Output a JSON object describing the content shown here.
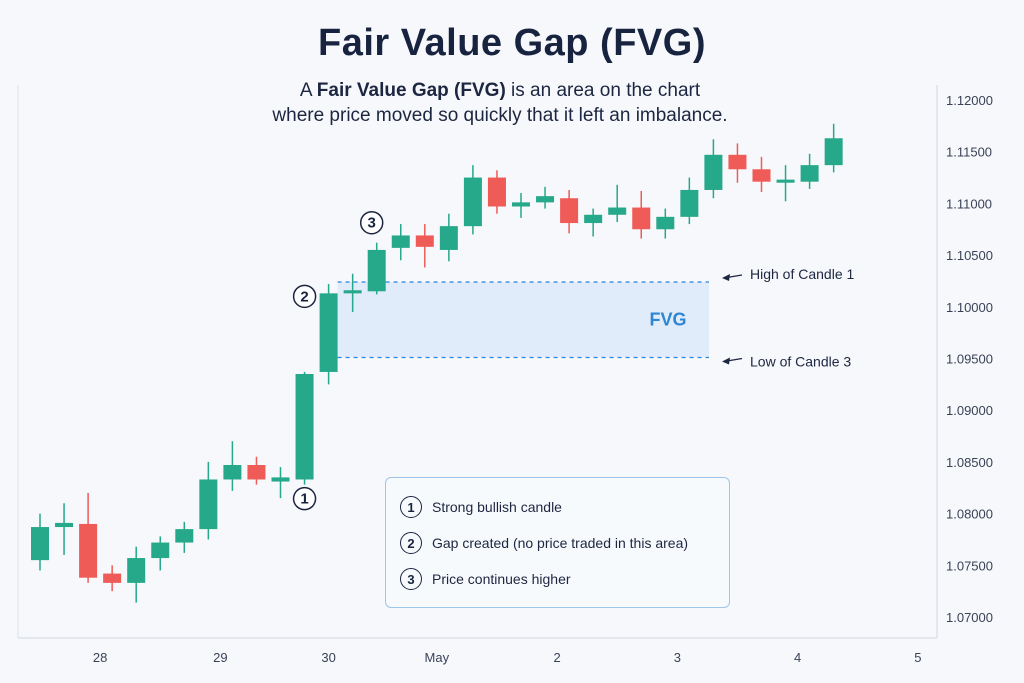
{
  "title": "Fair Value Gap (FVG)",
  "subtitle": {
    "pre": "A ",
    "bold": "Fair Value Gap (FVG)",
    "line1_post": " is an area on the chart",
    "line2": "where price moved so quickly that it left an imbalance."
  },
  "colors": {
    "bull": "#26a88a",
    "bear": "#ef5b57",
    "fvg_fill": "#dceaf8",
    "fvg_line": "#2d86d4",
    "text": "#1d2640"
  },
  "chart_data": {
    "type": "candlestick",
    "title": "Fair Value Gap (FVG)",
    "ylim": [
      1.0675,
      1.1225
    ],
    "y_ticks": [
      "1.12000",
      "1.11500",
      "1.11000",
      "1.10500",
      "1.10000",
      "1.09500",
      "1.09000",
      "1.08500",
      "1.08000",
      "1.07500",
      "1.07000"
    ],
    "x_ticks": [
      {
        "label": "28",
        "index": 2.5
      },
      {
        "label": "29",
        "index": 7.5
      },
      {
        "label": "30",
        "index": 12.0
      },
      {
        "label": "May",
        "index": 16.5
      },
      {
        "label": "2",
        "index": 21.5
      },
      {
        "label": "3",
        "index": 26.5
      },
      {
        "label": "4",
        "index": 31.5
      },
      {
        "label": "5",
        "index": 36.5
      }
    ],
    "candles": [
      {
        "o": 1.0755,
        "h": 1.08,
        "l": 1.0745,
        "c": 1.0787
      },
      {
        "o": 1.0787,
        "h": 1.081,
        "l": 1.076,
        "c": 1.0791
      },
      {
        "o": 1.079,
        "h": 1.082,
        "l": 1.0733,
        "c": 1.0738
      },
      {
        "o": 1.0742,
        "h": 1.075,
        "l": 1.0725,
        "c": 1.0733
      },
      {
        "o": 1.0733,
        "h": 1.0768,
        "l": 1.0714,
        "c": 1.0757
      },
      {
        "o": 1.0757,
        "h": 1.0778,
        "l": 1.0745,
        "c": 1.0772
      },
      {
        "o": 1.0772,
        "h": 1.0792,
        "l": 1.0762,
        "c": 1.0785
      },
      {
        "o": 1.0785,
        "h": 1.085,
        "l": 1.0775,
        "c": 1.0833
      },
      {
        "o": 1.0833,
        "h": 1.087,
        "l": 1.0822,
        "c": 1.0847
      },
      {
        "o": 1.0847,
        "h": 1.0855,
        "l": 1.0828,
        "c": 1.0833
      },
      {
        "o": 1.0831,
        "h": 1.0845,
        "l": 1.0815,
        "c": 1.0835
      },
      {
        "o": 1.0833,
        "h": 1.0937,
        "l": 1.0828,
        "c": 1.0935
      },
      {
        "o": 1.0937,
        "h": 1.1022,
        "l": 1.0925,
        "c": 1.1013
      },
      {
        "o": 1.1013,
        "h": 1.1032,
        "l": 1.0995,
        "c": 1.1016
      },
      {
        "o": 1.1015,
        "h": 1.1062,
        "l": 1.1012,
        "c": 1.1055
      },
      {
        "o": 1.1057,
        "h": 1.108,
        "l": 1.1045,
        "c": 1.1069
      },
      {
        "o": 1.1069,
        "h": 1.108,
        "l": 1.1038,
        "c": 1.1058
      },
      {
        "o": 1.1055,
        "h": 1.109,
        "l": 1.1044,
        "c": 1.1078
      },
      {
        "o": 1.1078,
        "h": 1.1137,
        "l": 1.107,
        "c": 1.1125
      },
      {
        "o": 1.1125,
        "h": 1.1132,
        "l": 1.109,
        "c": 1.1097
      },
      {
        "o": 1.1097,
        "h": 1.111,
        "l": 1.1086,
        "c": 1.1101
      },
      {
        "o": 1.1101,
        "h": 1.1116,
        "l": 1.1095,
        "c": 1.1107
      },
      {
        "o": 1.1105,
        "h": 1.1113,
        "l": 1.1071,
        "c": 1.1081
      },
      {
        "o": 1.1081,
        "h": 1.1095,
        "l": 1.1068,
        "c": 1.1089
      },
      {
        "o": 1.1089,
        "h": 1.1118,
        "l": 1.1082,
        "c": 1.1096
      },
      {
        "o": 1.1096,
        "h": 1.1112,
        "l": 1.1066,
        "c": 1.1075
      },
      {
        "o": 1.1075,
        "h": 1.1095,
        "l": 1.1066,
        "c": 1.1087
      },
      {
        "o": 1.1087,
        "h": 1.1125,
        "l": 1.108,
        "c": 1.1113
      },
      {
        "o": 1.1113,
        "h": 1.1162,
        "l": 1.1105,
        "c": 1.1147
      },
      {
        "o": 1.1147,
        "h": 1.1158,
        "l": 1.112,
        "c": 1.1133
      },
      {
        "o": 1.1133,
        "h": 1.1145,
        "l": 1.1111,
        "c": 1.1121
      },
      {
        "o": 1.112,
        "h": 1.1137,
        "l": 1.1102,
        "c": 1.1123
      },
      {
        "o": 1.1121,
        "h": 1.1148,
        "l": 1.1114,
        "c": 1.1137
      },
      {
        "o": 1.1137,
        "h": 1.1177,
        "l": 1.113,
        "c": 1.1163
      }
    ],
    "fvg": {
      "top": 1.1024,
      "bottom": 1.0951,
      "label": "FVG",
      "top_label": "High of Candle 1",
      "bottom_label": "Low of Candle 3"
    },
    "markers": [
      {
        "label": "1",
        "candle": 11
      },
      {
        "label": "2",
        "candle": 12
      },
      {
        "label": "3",
        "candle": 14
      }
    ]
  },
  "legend": [
    {
      "num": "1",
      "text": "Strong bullish candle"
    },
    {
      "num": "2",
      "text": "Gap created (no price traded in this area)"
    },
    {
      "num": "3",
      "text": "Price continues higher"
    }
  ]
}
